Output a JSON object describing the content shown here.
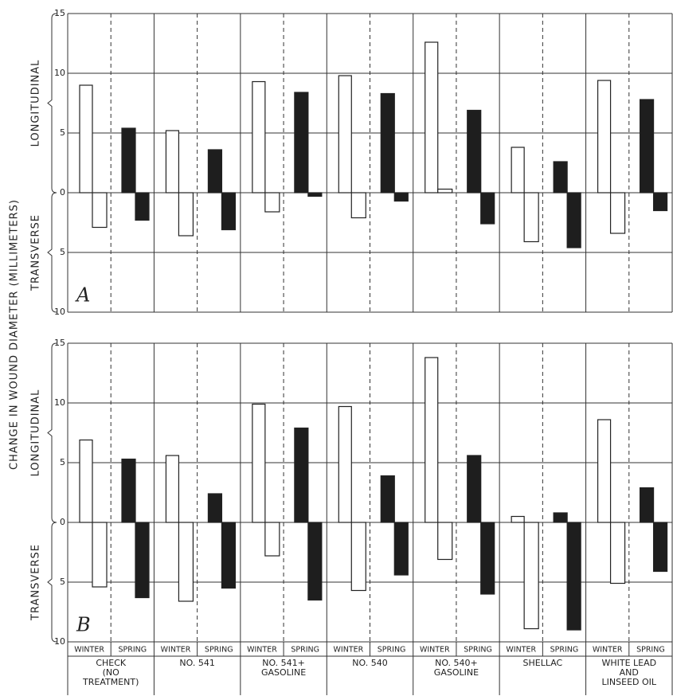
{
  "ylabel": "CHANGE IN WOUND DIAMETER (MILLIMETERS)",
  "subcategories": [
    "WINTER",
    "SPRING"
  ],
  "categories": [
    [
      "CHECK",
      "(NO",
      "TREATMENT)"
    ],
    [
      "NO. 541"
    ],
    [
      "NO. 541+",
      "GASOLINE"
    ],
    [
      "NO. 540"
    ],
    [
      "NO. 540+",
      "GASOLINE"
    ],
    [
      "SHELLAC"
    ],
    [
      "WHITE LEAD",
      "AND",
      "LINSEED OIL"
    ]
  ],
  "chart_data": [
    {
      "type": "bar",
      "title": "A",
      "longitudinal_label": "LONGITUDINAL",
      "transverse_label": "TRANSVERSE",
      "ylim": [
        -10,
        15
      ],
      "yticks": [
        15,
        10,
        5,
        0,
        {
          "value": -5,
          "label": "5"
        },
        {
          "value": -10,
          "label": "10"
        }
      ],
      "grid": true,
      "series": [
        {
          "color": "#ffffff",
          "values": [
            9,
            5.2,
            9.3,
            9.8,
            12.6,
            3.8,
            9.4
          ]
        },
        {
          "color": "#ffffff",
          "values": [
            -2.9,
            -3.6,
            -1.6,
            -2.1,
            0.3,
            -4.1,
            -3.4
          ]
        },
        {
          "color": "#1e1e1e",
          "values": [
            5.4,
            3.6,
            8.4,
            8.3,
            6.9,
            2.6,
            7.8
          ]
        },
        {
          "color": "#1e1e1e",
          "values": [
            -2.3,
            -3.1,
            -0.3,
            -0.7,
            -2.6,
            -4.6,
            -1.5
          ]
        }
      ]
    },
    {
      "type": "bar",
      "title": "B",
      "longitudinal_label": "LONGITUDINAL",
      "transverse_label": "TRANSVERSE",
      "ylim": [
        -10,
        15
      ],
      "yticks": [
        15,
        10,
        5,
        0,
        {
          "value": -5,
          "label": "5"
        },
        {
          "value": -10,
          "label": "10"
        }
      ],
      "grid": true,
      "series": [
        {
          "color": "#ffffff",
          "values": [
            6.9,
            5.6,
            9.9,
            9.7,
            13.8,
            0.5,
            8.6
          ]
        },
        {
          "color": "#ffffff",
          "values": [
            -5.4,
            -6.6,
            -2.8,
            -5.7,
            -3.1,
            -8.9,
            -5.1
          ]
        },
        {
          "color": "#1e1e1e",
          "values": [
            5.3,
            2.4,
            7.9,
            3.9,
            5.6,
            0.8,
            2.9
          ]
        },
        {
          "color": "#1e1e1e",
          "values": [
            -6.3,
            -5.5,
            -6.5,
            -4.4,
            -6.0,
            -9.0,
            -4.1
          ]
        }
      ]
    }
  ]
}
